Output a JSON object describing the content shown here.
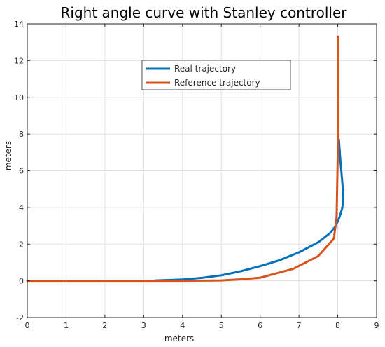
{
  "chart_data": {
    "type": "line",
    "title": "Right angle curve with Stanley controller",
    "xlabel": "meters",
    "ylabel": "meters",
    "xlim": [
      0,
      9
    ],
    "ylim": [
      -2,
      14
    ],
    "xticks": [
      0,
      1,
      2,
      3,
      4,
      5,
      6,
      7,
      8,
      9
    ],
    "yticks": [
      -2,
      0,
      2,
      4,
      6,
      8,
      10,
      12,
      14
    ],
    "grid": true,
    "legend_position": "upper-center",
    "series": [
      {
        "name": "Real trajectory",
        "color": "#0072BD",
        "x": [
          3.3,
          4.0,
          4.5,
          5.0,
          5.5,
          6.0,
          6.5,
          7.0,
          7.5,
          7.8,
          7.95,
          8.05,
          8.12,
          8.14,
          8.12,
          8.07,
          8.03
        ],
        "y": [
          0.02,
          0.07,
          0.16,
          0.3,
          0.52,
          0.8,
          1.12,
          1.55,
          2.1,
          2.6,
          3.0,
          3.5,
          4.0,
          4.5,
          5.3,
          6.5,
          7.7
        ]
      },
      {
        "name": "Reference trajectory",
        "color": "#D95319",
        "x": [
          0,
          1,
          2,
          3,
          4,
          5,
          5.5,
          6,
          6.85,
          7.5,
          7.9,
          7.97,
          8.0,
          8.0
        ],
        "y": [
          0,
          0,
          0,
          0,
          0,
          0.02,
          0.08,
          0.17,
          0.65,
          1.35,
          2.3,
          3.5,
          7.0,
          13.3
        ]
      }
    ]
  }
}
